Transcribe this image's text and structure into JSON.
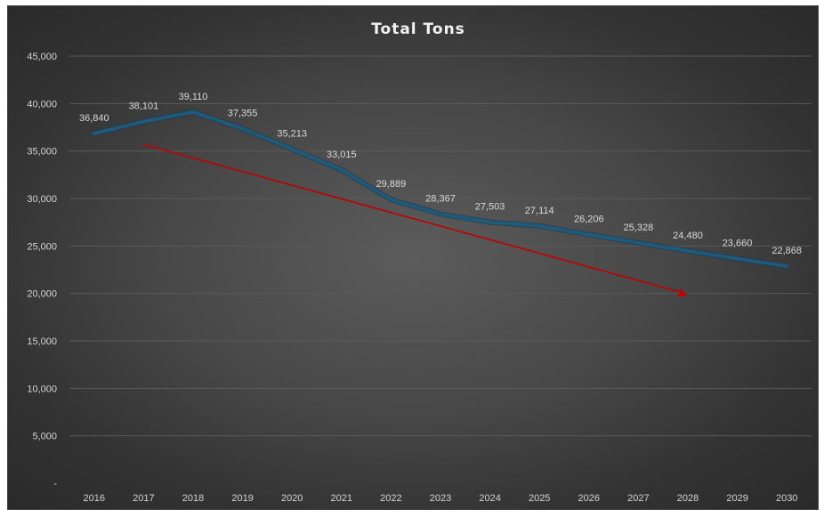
{
  "chart_data": {
    "type": "line",
    "title": "Total Tons",
    "xlabel": "",
    "ylabel": "",
    "categories": [
      "2016",
      "2017",
      "2018",
      "2019",
      "2020",
      "2021",
      "2022",
      "2023",
      "2024",
      "2025",
      "2026",
      "2027",
      "2028",
      "2029",
      "2030"
    ],
    "series": [
      {
        "values": [
          36840,
          38101,
          39110,
          37355,
          35213,
          33015,
          29889,
          28367,
          27503,
          27114,
          26206,
          25328,
          24480,
          23660,
          22868
        ],
        "data_labels": [
          "36,840",
          "38,101",
          "39,110",
          "37,355",
          "35,213",
          "33,015",
          "29,889",
          "28,367",
          "27,503",
          "27,114",
          "26,206",
          "25,328",
          "24,480",
          "23,660",
          "22,868"
        ],
        "color": "#1f5a7a"
      }
    ],
    "trend_arrow": {
      "color": "#c00000",
      "from": {
        "x": "2017",
        "y": 35700
      },
      "to": {
        "x": "2028",
        "y": 19800
      }
    },
    "ylim": [
      0,
      45000
    ],
    "y_ticks": [
      0,
      5000,
      10000,
      15000,
      20000,
      25000,
      30000,
      35000,
      40000,
      45000
    ],
    "y_tick_labels": [
      "-",
      "5,000",
      "10,000",
      "15,000",
      "20,000",
      "25,000",
      "30,000",
      "35,000",
      "40,000",
      "45,000"
    ],
    "grid": true,
    "legend": "none",
    "colors": {
      "background_center": "#5c5c5c",
      "background_edge": "#2a2a2a",
      "gridline": "#5a5a5a",
      "text": "#d9d9d9"
    }
  }
}
